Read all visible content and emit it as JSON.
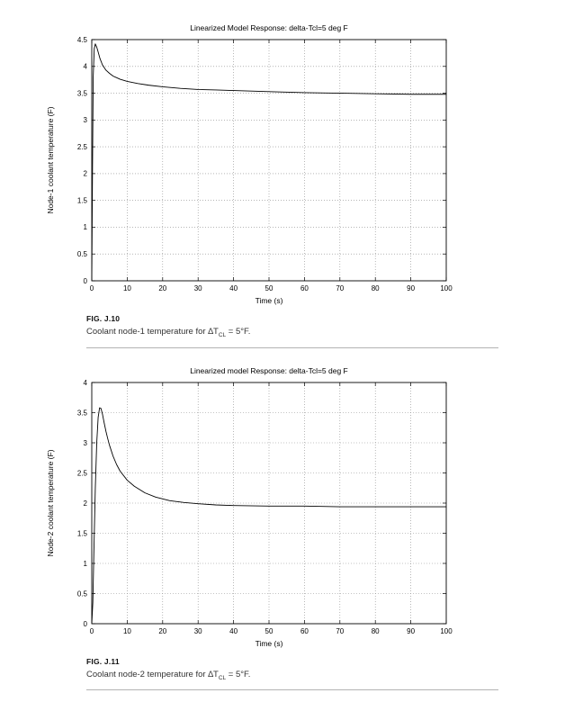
{
  "page": {
    "background": "#ffffff",
    "rule_color": "#b3b3b3"
  },
  "figures": [
    {
      "fig_label": "FIG. J.10",
      "caption_prefix": "Coolant node-1 temperature for ",
      "caption_delta": "∆T",
      "caption_sub": "CL",
      "caption_suffix": " = 5°F."
    },
    {
      "fig_label": "FIG. J.11",
      "caption_prefix": "Coolant node-2 temperature for ",
      "caption_delta": "∆T",
      "caption_sub": "CL",
      "caption_suffix": " = 5°F."
    }
  ],
  "chart_data": [
    {
      "type": "line",
      "title": "Linearized Model Response: delta-Tcl=5 deg F",
      "xlabel": "Time (s)",
      "ylabel": "Node-1 coolant temperature (F)",
      "xlim": [
        0,
        100
      ],
      "ylim": [
        0,
        4.5
      ],
      "xticks": [
        0,
        10,
        20,
        30,
        40,
        50,
        60,
        70,
        80,
        90,
        100
      ],
      "yticks": [
        0,
        0.5,
        1,
        1.5,
        2,
        2.5,
        3,
        3.5,
        4,
        4.5
      ],
      "grid": true,
      "grid_color": "#8a8a8a",
      "line_color": "#000000",
      "series": [
        {
          "name": "node-1-coolant-temperature",
          "x": [
            0,
            0.2,
            0.4,
            0.7,
            1,
            1.4,
            1.8,
            2.3,
            3,
            4,
            5,
            6,
            8,
            10,
            13,
            16,
            20,
            25,
            30,
            35,
            40,
            50,
            60,
            70,
            80,
            90,
            100
          ],
          "y": [
            0,
            2.0,
            3.8,
            4.33,
            4.42,
            4.36,
            4.27,
            4.15,
            4.03,
            3.93,
            3.87,
            3.82,
            3.76,
            3.72,
            3.68,
            3.65,
            3.62,
            3.59,
            3.57,
            3.56,
            3.55,
            3.53,
            3.51,
            3.5,
            3.49,
            3.48,
            3.48
          ]
        }
      ]
    },
    {
      "type": "line",
      "title": "Linearized model Response: delta-Tcl=5 deg F",
      "xlabel": "Time (s)",
      "ylabel": "Node-2 coolant temperature (F)",
      "xlim": [
        0,
        100
      ],
      "ylim": [
        0,
        4
      ],
      "xticks": [
        0,
        10,
        20,
        30,
        40,
        50,
        60,
        70,
        80,
        90,
        100
      ],
      "yticks": [
        0,
        0.5,
        1,
        1.5,
        2,
        2.5,
        3,
        3.5,
        4
      ],
      "grid": true,
      "grid_color": "#8a8a8a",
      "line_color": "#000000",
      "series": [
        {
          "name": "node-2-coolant-temperature",
          "x": [
            0,
            0.3,
            0.6,
            1,
            1.4,
            1.8,
            2.2,
            2.6,
            3,
            3.5,
            4,
            4.5,
            5,
            6,
            7,
            8,
            10,
            12,
            15,
            18,
            22,
            26,
            30,
            35,
            40,
            50,
            60,
            70,
            80,
            90,
            100
          ],
          "y": [
            0,
            0.35,
            1.2,
            2.25,
            3.0,
            3.42,
            3.58,
            3.57,
            3.48,
            3.33,
            3.19,
            3.07,
            2.96,
            2.78,
            2.64,
            2.53,
            2.38,
            2.28,
            2.17,
            2.1,
            2.04,
            2.01,
            1.99,
            1.97,
            1.96,
            1.95,
            1.95,
            1.94,
            1.94,
            1.94,
            1.94
          ]
        }
      ]
    }
  ]
}
